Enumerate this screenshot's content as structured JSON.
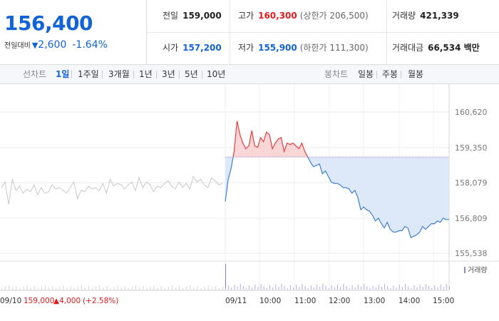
{
  "price": {
    "current": "156,400",
    "change_label": "전일대비",
    "change_arrow": "▼",
    "change_value": "2,600",
    "change_pct": "-1.64%"
  },
  "stats": {
    "prev_close": {
      "label": "전일",
      "value": "159,000"
    },
    "high": {
      "label": "고가",
      "value": "160,300",
      "sub": "(상한가 206,500)"
    },
    "volume": {
      "label": "거래량",
      "value": "421,339"
    },
    "open": {
      "label": "시가",
      "value": "157,200"
    },
    "low": {
      "label": "저가",
      "value": "155,900",
      "sub": "(하한가 111,300)"
    },
    "amount": {
      "label": "거래대금",
      "value": "66,534 백만"
    }
  },
  "toolbar": {
    "line_label": "선차트",
    "line_tabs": [
      "1일",
      "1주일",
      "3개월",
      "1년",
      "3년",
      "5년",
      "10년"
    ],
    "active_tab": "1일",
    "candle_label": "봉차트",
    "candle_tabs": [
      "일봉",
      "주봉",
      "월봉"
    ]
  },
  "chart_data": {
    "type": "line",
    "y_ticks": [
      "160,620",
      "159,350",
      "158,079",
      "156,809",
      "155,538"
    ],
    "ylim": [
      155538,
      160620
    ],
    "baseline": 159000,
    "volume_label": "거래량",
    "prev_day": {
      "date": "09/10",
      "close": "159,000",
      "change": "▲4,000",
      "pct": "(+2.58%)"
    },
    "x_labels": [
      "09/11",
      "10:00",
      "11:00",
      "12:00",
      "13:00",
      "14:00",
      "15:00"
    ],
    "prev_series": {
      "x": [
        0,
        1,
        2,
        3,
        4,
        5,
        6,
        7,
        8,
        9,
        10,
        11,
        12,
        13,
        14,
        15,
        16,
        17,
        18,
        19,
        20,
        21,
        22,
        23,
        24,
        25,
        26,
        27,
        28,
        29,
        30,
        31,
        32,
        33,
        34,
        35,
        36,
        37,
        38,
        39,
        40,
        41,
        42,
        43,
        44,
        45,
        46,
        47,
        48,
        49,
        50,
        51,
        52,
        53,
        54,
        55,
        56,
        57,
        58,
        59,
        60,
        61
      ],
      "y": [
        157900,
        158100,
        157300,
        158200,
        157800,
        157950,
        157700,
        157850,
        157750,
        158000,
        157650,
        157900,
        157700,
        157750,
        158000,
        157850,
        157900,
        157800,
        157700,
        157900,
        158100,
        157500,
        157800,
        157750,
        157950,
        157850,
        157900,
        157800,
        158050,
        157700,
        158200,
        157950,
        158050,
        158000,
        157850,
        158000,
        158100,
        157800,
        158250,
        157900,
        158100,
        158000,
        157750,
        157950,
        157900,
        158050,
        158150,
        157950,
        157850,
        158100,
        157900,
        158050,
        157850,
        158300,
        158100,
        158200,
        158000,
        157900,
        158250,
        158150,
        158000,
        158050
      ]
    },
    "today_series": {
      "x": [
        "09:00",
        "09:05",
        "09:10",
        "09:15",
        "09:20",
        "09:25",
        "09:30",
        "09:35",
        "09:40",
        "09:45",
        "09:50",
        "09:55",
        "10:00",
        "10:05",
        "10:10",
        "10:15",
        "10:20",
        "10:25",
        "10:30",
        "10:35",
        "10:40",
        "10:45",
        "10:50",
        "10:55",
        "11:00",
        "11:05",
        "11:10",
        "11:15",
        "11:20",
        "11:25",
        "11:30",
        "11:35",
        "11:40",
        "11:45",
        "11:50",
        "11:55",
        "12:00",
        "12:05",
        "12:10",
        "12:15",
        "12:20",
        "12:25",
        "12:30",
        "12:35",
        "12:40",
        "12:45",
        "12:50",
        "12:55",
        "13:00",
        "13:05",
        "13:10",
        "13:15",
        "13:20",
        "13:25",
        "13:30",
        "13:35",
        "13:40",
        "13:45",
        "13:50",
        "13:55",
        "14:00",
        "14:05",
        "14:10",
        "14:15",
        "14:20",
        "14:25",
        "14:30",
        "14:35",
        "14:40",
        "14:45",
        "14:50",
        "14:55",
        "15:00",
        "15:05",
        "15:10",
        "15:15",
        "15:20"
      ],
      "y": [
        157400,
        158200,
        158600,
        159200,
        160300,
        159800,
        159500,
        159300,
        159400,
        159950,
        159400,
        159350,
        159700,
        159550,
        159900,
        159800,
        159300,
        159500,
        159650,
        159700,
        159200,
        159500,
        159450,
        159500,
        159400,
        159300,
        159500,
        159200,
        159000,
        158800,
        158650,
        158700,
        158750,
        158400,
        158500,
        158300,
        158100,
        158050,
        158050,
        158000,
        157900,
        157900,
        157850,
        157700,
        157800,
        157550,
        157100,
        157200,
        157100,
        157050,
        156900,
        156700,
        156800,
        156600,
        156450,
        156650,
        156400,
        156300,
        156300,
        156350,
        156350,
        156500,
        156450,
        156100,
        156150,
        156200,
        156300,
        156500,
        156400,
        156500,
        156600,
        156600,
        156700,
        156650,
        156800,
        156750,
        156750
      ]
    }
  }
}
